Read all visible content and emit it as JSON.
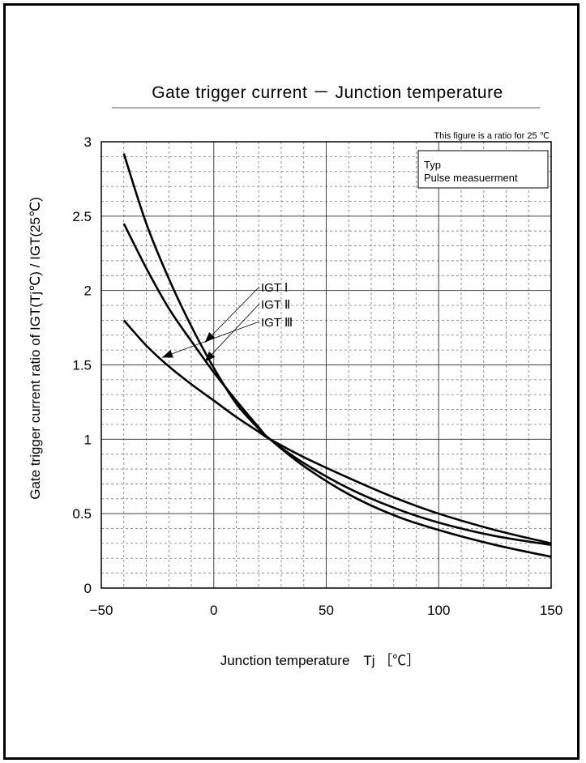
{
  "chart_data": {
    "type": "line",
    "title": "Gate trigger current － Junction temperature",
    "note": "This figure is a ratio for 25 ℃",
    "legend": {
      "lines": [
        "Typ",
        "Pulse measuerment"
      ],
      "placement": "top-right"
    },
    "xlabel": "Junction temperature　Tj ［℃］",
    "ylabel": "Gate trigger current ratio of IGT(Tj℃) / IGT(25℃)",
    "xlim": [
      -50,
      150
    ],
    "ylim": [
      0,
      3
    ],
    "xticks": [
      -50,
      0,
      50,
      100,
      150
    ],
    "yticks": [
      0,
      0.5,
      1,
      1.5,
      2,
      2.5,
      3
    ],
    "grid": true,
    "series": [
      {
        "name": "IGT Ⅰ",
        "x": [
          -40,
          -30,
          -20,
          -10,
          0,
          10,
          20,
          25,
          40,
          60,
          80,
          100,
          125,
          150
        ],
        "y": [
          2.92,
          2.45,
          2.08,
          1.76,
          1.48,
          1.24,
          1.07,
          1.0,
          0.82,
          0.63,
          0.49,
          0.39,
          0.29,
          0.21
        ]
      },
      {
        "name": "IGT Ⅱ",
        "x": [
          -40,
          -30,
          -20,
          -10,
          0,
          10,
          20,
          25,
          40,
          60,
          80,
          100,
          125,
          150
        ],
        "y": [
          2.45,
          2.15,
          1.88,
          1.66,
          1.45,
          1.26,
          1.08,
          1.0,
          0.84,
          0.67,
          0.54,
          0.44,
          0.35,
          0.29
        ]
      },
      {
        "name": "IGT Ⅲ",
        "x": [
          -40,
          -30,
          -20,
          -10,
          0,
          10,
          20,
          25,
          40,
          60,
          80,
          100,
          125,
          150
        ],
        "y": [
          1.8,
          1.63,
          1.49,
          1.37,
          1.26,
          1.15,
          1.05,
          1.0,
          0.88,
          0.74,
          0.61,
          0.5,
          0.39,
          0.3
        ]
      }
    ]
  }
}
